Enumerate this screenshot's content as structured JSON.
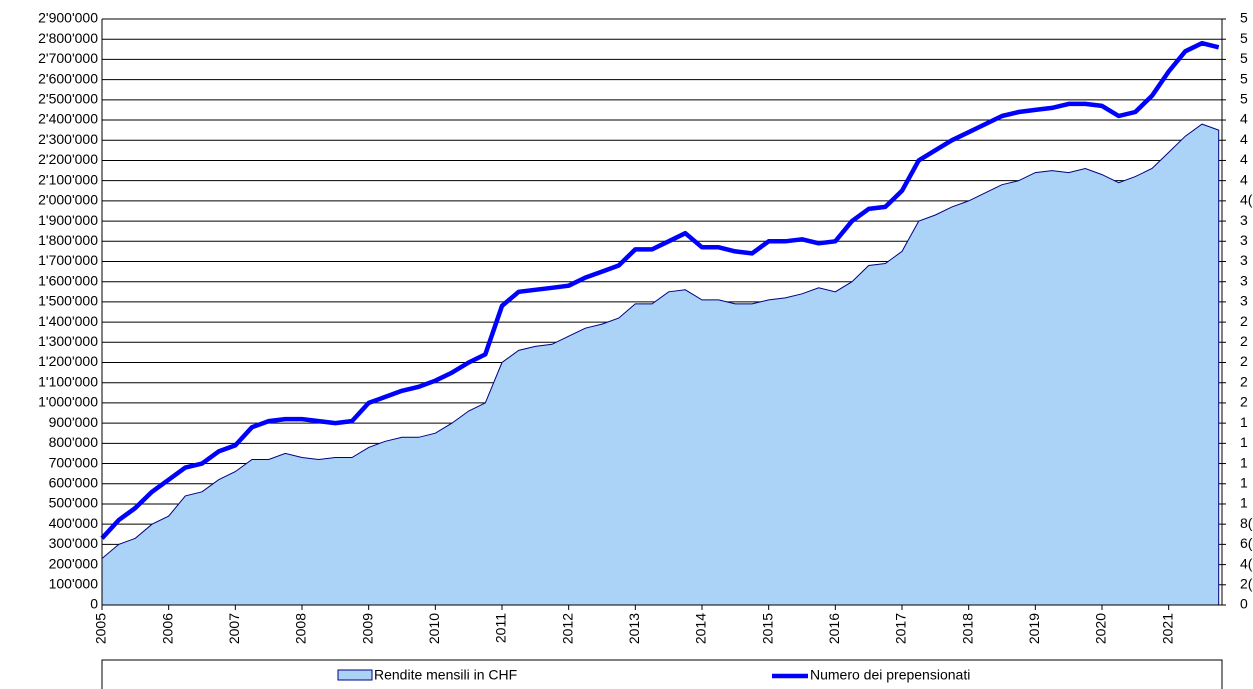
{
  "chart_data": {
    "type": "area-line",
    "x": [
      2005,
      2005.25,
      2005.5,
      2005.75,
      2006,
      2006.25,
      2006.5,
      2006.75,
      2007,
      2007.25,
      2007.5,
      2007.75,
      2008,
      2008.25,
      2008.5,
      2008.75,
      2009,
      2009.25,
      2009.5,
      2009.75,
      2010,
      2010.25,
      2010.5,
      2010.75,
      2011,
      2011.25,
      2011.5,
      2011.75,
      2012,
      2012.25,
      2012.5,
      2012.75,
      2013,
      2013.25,
      2013.5,
      2013.75,
      2014,
      2014.25,
      2014.5,
      2014.75,
      2015,
      2015.25,
      2015.5,
      2015.75,
      2016,
      2016.25,
      2016.5,
      2016.75,
      2017,
      2017.25,
      2017.5,
      2017.75,
      2018,
      2018.25,
      2018.5,
      2018.75,
      2019,
      2019.25,
      2019.5,
      2019.75,
      2020,
      2020.25,
      2020.5,
      2020.75,
      2021,
      2021.25,
      2021.5,
      2021.75
    ],
    "series": [
      {
        "name": "Rendite mensili in CHF",
        "color": "#abd2f7",
        "values": [
          230000,
          300000,
          330000,
          400000,
          440000,
          540000,
          560000,
          620000,
          660000,
          720000,
          720000,
          750000,
          730000,
          720000,
          730000,
          730000,
          780000,
          810000,
          830000,
          830000,
          850000,
          900000,
          960000,
          1000000,
          1200000,
          1260000,
          1280000,
          1290000,
          1330000,
          1370000,
          1390000,
          1420000,
          1490000,
          1490000,
          1550000,
          1560000,
          1510000,
          1510000,
          1490000,
          1490000,
          1510000,
          1520000,
          1540000,
          1570000,
          1550000,
          1600000,
          1680000,
          1690000,
          1750000,
          1900000,
          1930000,
          1970000,
          2000000,
          2040000,
          2080000,
          2100000,
          2140000,
          2150000,
          2140000,
          2160000,
          2130000,
          2090000,
          2120000,
          2160000,
          2240000,
          2320000,
          2380000,
          2350000
        ]
      },
      {
        "name": "Numero dei prepensionati",
        "color": "#0000ff",
        "axis": "y2",
        "values": [
          660,
          840,
          960,
          1120,
          1240,
          1360,
          1400,
          1520,
          1580,
          1760,
          1820,
          1840,
          1840,
          1820,
          1800,
          1820,
          2000,
          2060,
          2120,
          2160,
          2220,
          2300,
          2400,
          2480,
          2960,
          3100,
          3120,
          3140,
          3160,
          3240,
          3300,
          3360,
          3520,
          3520,
          3600,
          3680,
          3540,
          3540,
          3500,
          3480,
          3600,
          3600,
          3620,
          3580,
          3600,
          3800,
          3920,
          3940,
          4100,
          4400,
          4500,
          4600,
          4680,
          4760,
          4840,
          4880,
          4900,
          4920,
          4960,
          4960,
          4940,
          4840,
          4880,
          5040,
          5280,
          5480,
          5560,
          5520
        ]
      }
    ],
    "xlim": [
      2005,
      2021.8
    ],
    "xticks": [
      2005,
      2006,
      2007,
      2008,
      2009,
      2010,
      2011,
      2012,
      2013,
      2014,
      2015,
      2016,
      2017,
      2018,
      2019,
      2020,
      2021
    ],
    "ylim": [
      0,
      2900000
    ],
    "yticks": [
      0,
      {
        "value": 100000,
        "label": "100'000"
      },
      {
        "value": 200000,
        "label": "200'000"
      },
      {
        "value": 300000,
        "label": "300'000"
      },
      {
        "value": 400000,
        "label": "400'000"
      },
      {
        "value": 500000,
        "label": "500'000"
      },
      {
        "value": 600000,
        "label": "600'000"
      },
      {
        "value": 700000,
        "label": "700'000"
      },
      {
        "value": 800000,
        "label": "800'000"
      },
      {
        "value": 900000,
        "label": "900'000"
      },
      {
        "value": 1000000,
        "label": "1'000'000"
      },
      {
        "value": 1100000,
        "label": "1'100'000"
      },
      {
        "value": 1200000,
        "label": "1'200'000"
      },
      {
        "value": 1300000,
        "label": "1'300'000"
      },
      {
        "value": 1400000,
        "label": "1'400'000"
      },
      {
        "value": 1500000,
        "label": "1'500'000"
      },
      {
        "value": 1600000,
        "label": "1'600'000"
      },
      {
        "value": 1700000,
        "label": "1'700'000"
      },
      {
        "value": 1800000,
        "label": "1'800'000"
      },
      {
        "value": 1900000,
        "label": "1'900'000"
      },
      {
        "value": 2000000,
        "label": "2'000'000"
      },
      {
        "value": 2100000,
        "label": "2'100'000"
      },
      {
        "value": 2200000,
        "label": "2'200'000"
      },
      {
        "value": 2300000,
        "label": "2'300'000"
      },
      {
        "value": 2400000,
        "label": "2'400'000"
      },
      {
        "value": 2500000,
        "label": "2'500'000"
      },
      {
        "value": 2600000,
        "label": "2'600'000"
      },
      {
        "value": 2700000,
        "label": "2'700'000"
      },
      {
        "value": 2800000,
        "label": "2'800'000"
      },
      {
        "value": 2900000,
        "label": "2'900'000"
      }
    ],
    "y2lim": [
      0,
      5800
    ],
    "y2ticks": [
      0,
      {
        "value": 200,
        "label": "2("
      },
      {
        "value": 400,
        "label": "4("
      },
      {
        "value": 600,
        "label": "6("
      },
      {
        "value": 800,
        "label": "8("
      },
      {
        "value": 1000,
        "label": "1"
      },
      {
        "value": 1200,
        "label": "1"
      },
      {
        "value": 1400,
        "label": "1"
      },
      {
        "value": 1600,
        "label": "1"
      },
      {
        "value": 1800,
        "label": "1"
      },
      {
        "value": 2000,
        "label": "2"
      },
      {
        "value": 2200,
        "label": "2"
      },
      {
        "value": 2400,
        "label": "2"
      },
      {
        "value": 2600,
        "label": "2"
      },
      {
        "value": 2800,
        "label": "2"
      },
      {
        "value": 3000,
        "label": "3"
      },
      {
        "value": 3200,
        "label": "3"
      },
      {
        "value": 3400,
        "label": "3"
      },
      {
        "value": 3600,
        "label": "3"
      },
      {
        "value": 3800,
        "label": "3"
      },
      {
        "value": 4000,
        "label": "4("
      },
      {
        "value": 4200,
        "label": "4"
      },
      {
        "value": 4400,
        "label": "4"
      },
      {
        "value": 4600,
        "label": "4"
      },
      {
        "value": 4800,
        "label": "4"
      },
      {
        "value": 5000,
        "label": "5"
      },
      {
        "value": 5200,
        "label": "5"
      },
      {
        "value": 5400,
        "label": "5"
      },
      {
        "value": 5600,
        "label": "5"
      },
      {
        "value": 5800,
        "label": "5"
      }
    ],
    "grid": true
  }
}
